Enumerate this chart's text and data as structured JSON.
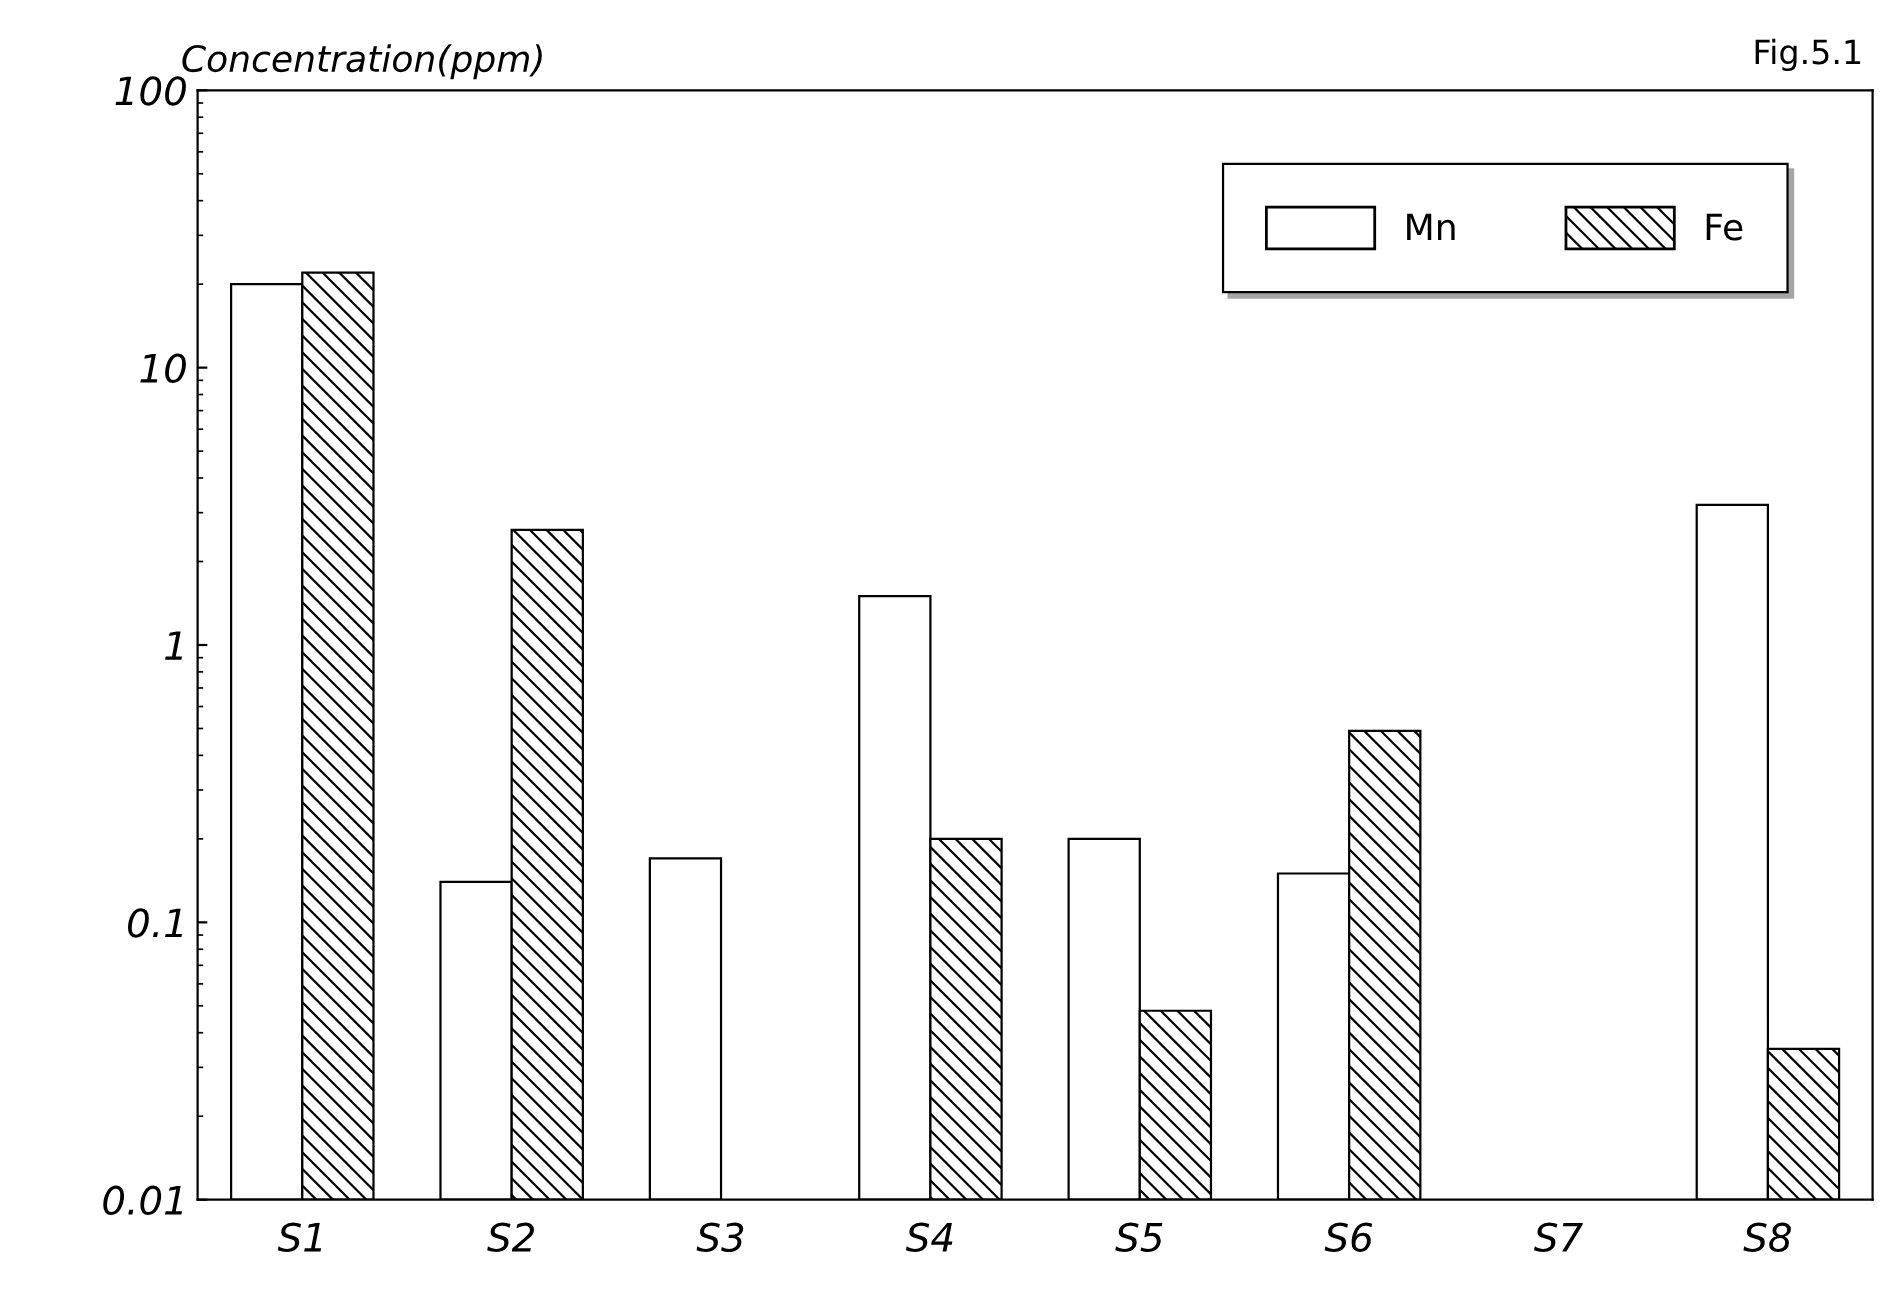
{
  "chart_data": {
    "type": "bar",
    "ylabel": "Concentration(ppm)",
    "annotations": [
      "Fig.5.1"
    ],
    "categories": [
      "S1",
      "S2",
      "S3",
      "S4",
      "S5",
      "S6",
      "S7",
      "S8"
    ],
    "series": [
      {
        "name": "Mn",
        "color": "#ffffff",
        "values": [
          20,
          0.14,
          0.17,
          1.5,
          0.2,
          0.15,
          null,
          3.2
        ]
      },
      {
        "name": "Fe",
        "color": "#000000",
        "values": [
          22,
          2.6,
          null,
          0.2,
          0.048,
          0.49,
          null,
          0.035
        ]
      }
    ],
    "log": true,
    "ylim": [
      0.01,
      100
    ],
    "yticks": [
      0.01,
      0.1,
      1,
      10,
      100
    ],
    "grid": false,
    "legend": "top right"
  }
}
